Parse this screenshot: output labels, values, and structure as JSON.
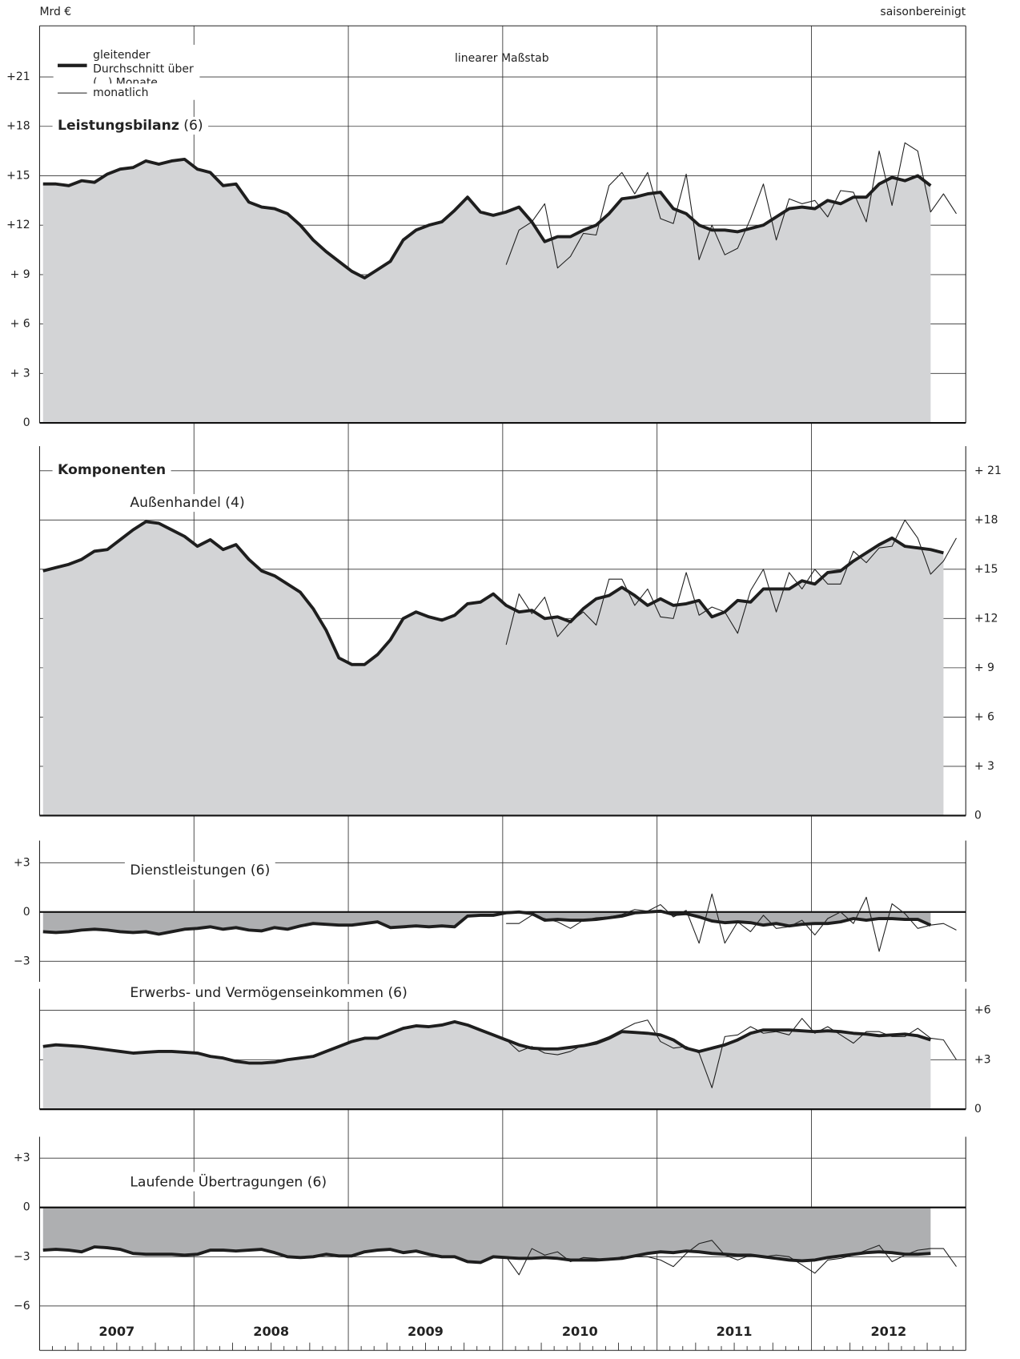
{
  "unit_label": "Mrd €",
  "adjustment_note": "saisonbereinigt",
  "scale_note": "linearer Maßstab",
  "section_title": "Komponenten",
  "years": [
    "2007",
    "2008",
    "2009",
    "2010",
    "2011",
    "2012"
  ],
  "chart_data": [
    {
      "type": "line",
      "title": "Leistungsbilanz",
      "title_note": "(6)",
      "ylim": [
        0,
        24.1
      ],
      "yticks": [
        0,
        {
          "value": 3,
          "label": "+ 3"
        },
        {
          "value": 6,
          "label": "+ 6"
        },
        {
          "value": 9,
          "label": "+ 9"
        },
        {
          "value": 12,
          "label": "+12"
        },
        {
          "value": 15,
          "label": "+15"
        },
        {
          "value": 18,
          "label": "+18"
        },
        {
          "value": 21,
          "label": "+21"
        }
      ],
      "area_color": "#d3d4d6",
      "grid": true,
      "series": [
        {
          "name": "gleitender Durchschnitt über (...) Monate",
          "color": "#1e1e1e",
          "values": [
            14.5,
            14.5,
            14.4,
            14.7,
            14.6,
            15.1,
            15.4,
            15.5,
            15.9,
            15.7,
            15.9,
            16.0,
            15.4,
            15.2,
            14.4,
            14.5,
            13.4,
            13.1,
            13.0,
            12.7,
            12.0,
            11.1,
            10.4,
            9.8,
            9.2,
            8.8,
            9.3,
            9.8,
            11.1,
            11.7,
            12.0,
            12.2,
            12.9,
            13.7,
            12.8,
            12.6,
            12.8,
            13.1,
            12.2,
            11.0,
            11.3,
            11.3,
            11.7,
            12.0,
            12.7,
            13.6,
            13.7,
            13.9,
            14.0,
            13.0,
            12.7,
            12.0,
            11.7,
            11.7,
            11.6,
            11.8,
            12.0,
            12.5,
            13.0,
            13.1,
            13.0,
            13.5,
            13.3,
            13.7,
            13.7,
            14.5,
            14.9,
            14.7,
            15.0,
            14.4,
            null,
            null
          ]
        },
        {
          "name": "monatlich",
          "color": "#1e1e1e",
          "values": [
            null,
            null,
            null,
            null,
            null,
            null,
            null,
            null,
            null,
            null,
            null,
            null,
            null,
            null,
            null,
            null,
            null,
            null,
            null,
            null,
            null,
            null,
            null,
            null,
            null,
            null,
            null,
            null,
            null,
            null,
            null,
            null,
            null,
            null,
            null,
            null,
            9.6,
            11.7,
            12.2,
            13.3,
            9.4,
            10.1,
            11.5,
            11.4,
            14.4,
            15.2,
            13.9,
            15.2,
            12.4,
            12.1,
            15.1,
            9.9,
            12.0,
            10.2,
            10.6,
            12.4,
            14.5,
            11.1,
            13.6,
            13.3,
            13.5,
            12.5,
            14.1,
            14.0,
            12.2,
            16.5,
            13.2,
            17.0,
            16.5,
            12.8,
            13.9,
            12.7
          ]
        }
      ]
    },
    {
      "type": "line",
      "title": "Außenhandel (4)",
      "ylim": [
        0,
        22.5
      ],
      "yticks": [
        0,
        {
          "value": 3,
          "label": "+ 3"
        },
        {
          "value": 6,
          "label": "+ 6"
        },
        {
          "value": 9,
          "label": "+ 9"
        },
        {
          "value": 12,
          "label": "+12"
        },
        {
          "value": 15,
          "label": "+15"
        },
        {
          "value": 18,
          "label": "+18"
        },
        {
          "value": 21,
          "label": "+ 21"
        }
      ],
      "area_color": "#d3d4d6",
      "grid": true,
      "series": [
        {
          "color": "#1e1e1e",
          "values": [
            14.9,
            15.1,
            15.3,
            15.6,
            16.1,
            16.2,
            16.8,
            17.4,
            17.9,
            17.8,
            17.4,
            17.0,
            16.4,
            16.8,
            16.2,
            16.5,
            15.6,
            14.9,
            14.6,
            14.1,
            13.6,
            12.6,
            11.3,
            9.6,
            9.2,
            9.2,
            9.8,
            10.7,
            12.0,
            12.4,
            12.1,
            11.9,
            12.2,
            12.9,
            13.0,
            13.5,
            12.8,
            12.4,
            12.5,
            12.0,
            12.1,
            11.8,
            12.6,
            13.2,
            13.4,
            13.9,
            13.4,
            12.8,
            13.2,
            12.8,
            12.9,
            13.1,
            12.1,
            12.4,
            13.1,
            13.0,
            13.8,
            13.8,
            13.8,
            14.3,
            14.1,
            14.8,
            14.9,
            15.5,
            16.0,
            16.5,
            16.9,
            16.4,
            16.3,
            16.2,
            16.0,
            null
          ]
        },
        {
          "color": "#1e1e1e",
          "values": [
            null,
            null,
            null,
            null,
            null,
            null,
            null,
            null,
            null,
            null,
            null,
            null,
            null,
            null,
            null,
            null,
            null,
            null,
            null,
            null,
            null,
            null,
            null,
            null,
            null,
            null,
            null,
            null,
            null,
            null,
            null,
            null,
            null,
            null,
            null,
            null,
            10.4,
            13.5,
            12.3,
            13.3,
            10.9,
            11.8,
            12.4,
            11.6,
            14.4,
            14.4,
            12.8,
            13.8,
            12.1,
            12.0,
            14.8,
            12.2,
            12.7,
            12.4,
            11.1,
            13.7,
            15.0,
            12.4,
            14.8,
            13.8,
            15.0,
            14.1,
            14.1,
            16.1,
            15.4,
            16.3,
            16.4,
            18.0,
            16.9,
            14.7,
            15.5,
            16.9
          ]
        }
      ]
    },
    {
      "type": "line",
      "title": "Dienstleistungen (6)",
      "ylim": [
        -4.25,
        4.35
      ],
      "yticks": [
        {
          "value": -3,
          "label": "−3"
        },
        0,
        {
          "value": 3,
          "label": "+3"
        }
      ],
      "area_color": "#aeafb1",
      "grid": true,
      "series": [
        {
          "color": "#1e1e1e",
          "values": [
            -1.2,
            -1.25,
            -1.2,
            -1.1,
            -1.05,
            -1.1,
            -1.2,
            -1.25,
            -1.2,
            -1.35,
            -1.2,
            -1.05,
            -1.0,
            -0.9,
            -1.05,
            -0.95,
            -1.1,
            -1.15,
            -0.95,
            -1.05,
            -0.85,
            -0.7,
            -0.75,
            -0.8,
            -0.8,
            -0.7,
            -0.6,
            -0.95,
            -0.9,
            -0.85,
            -0.9,
            -0.85,
            -0.9,
            -0.25,
            -0.2,
            -0.2,
            -0.05,
            0.0,
            -0.1,
            -0.5,
            -0.45,
            -0.5,
            -0.5,
            -0.45,
            -0.35,
            -0.25,
            -0.05,
            0.0,
            0.05,
            -0.15,
            -0.1,
            -0.3,
            -0.55,
            -0.65,
            -0.6,
            -0.65,
            -0.8,
            -0.7,
            -0.85,
            -0.75,
            -0.7,
            -0.7,
            -0.6,
            -0.4,
            -0.5,
            -0.4,
            -0.4,
            -0.45,
            -0.45,
            -0.8,
            null,
            null
          ]
        },
        {
          "color": "#1e1e1e",
          "values": [
            null,
            null,
            null,
            null,
            null,
            null,
            null,
            null,
            null,
            null,
            null,
            null,
            null,
            null,
            null,
            null,
            null,
            null,
            null,
            null,
            null,
            null,
            null,
            null,
            null,
            null,
            null,
            null,
            null,
            null,
            null,
            null,
            null,
            null,
            null,
            null,
            -0.7,
            -0.7,
            -0.2,
            -0.4,
            -0.6,
            -1.0,
            -0.5,
            -0.35,
            -0.3,
            -0.15,
            0.15,
            0.05,
            0.45,
            -0.3,
            0.1,
            -1.9,
            1.1,
            -1.9,
            -0.6,
            -1.2,
            -0.2,
            -1.0,
            -0.9,
            -0.5,
            -1.4,
            -0.4,
            0.0,
            -0.7,
            0.9,
            -2.4,
            0.5,
            -0.1,
            -1.0,
            -0.8,
            -0.7,
            -1.1
          ]
        }
      ]
    },
    {
      "type": "line",
      "title": "Erwerbs- und Vermögenseinkommen (6)",
      "ylim": [
        0,
        7.3
      ],
      "yticks": [
        0,
        {
          "value": 3,
          "label": "+3"
        },
        {
          "value": 6,
          "label": "+6"
        }
      ],
      "area_color": "#d3d4d6",
      "grid": true,
      "series": [
        {
          "color": "#1e1e1e",
          "values": [
            3.8,
            3.9,
            3.85,
            3.8,
            3.7,
            3.6,
            3.5,
            3.4,
            3.45,
            3.5,
            3.5,
            3.45,
            3.4,
            3.2,
            3.1,
            2.9,
            2.8,
            2.8,
            2.85,
            3.0,
            3.1,
            3.2,
            3.5,
            3.8,
            4.1,
            4.3,
            4.3,
            4.6,
            4.9,
            5.05,
            5.0,
            5.1,
            5.3,
            5.1,
            4.8,
            4.5,
            4.2,
            3.9,
            3.7,
            3.65,
            3.65,
            3.75,
            3.85,
            4.0,
            4.3,
            4.7,
            4.65,
            4.6,
            4.5,
            4.2,
            3.7,
            3.5,
            3.7,
            3.9,
            4.2,
            4.6,
            4.8,
            4.8,
            4.8,
            4.75,
            4.7,
            4.75,
            4.7,
            4.6,
            4.55,
            4.45,
            4.5,
            4.55,
            4.45,
            4.2,
            null,
            null
          ]
        },
        {
          "color": "#1e1e1e",
          "values": [
            null,
            null,
            null,
            null,
            null,
            null,
            null,
            null,
            null,
            null,
            null,
            null,
            null,
            null,
            null,
            null,
            null,
            null,
            null,
            null,
            null,
            null,
            null,
            null,
            null,
            null,
            null,
            null,
            null,
            null,
            null,
            null,
            null,
            null,
            null,
            null,
            4.2,
            3.5,
            3.8,
            3.4,
            3.3,
            3.5,
            3.9,
            4.1,
            4.4,
            4.8,
            5.2,
            5.4,
            4.1,
            3.7,
            3.8,
            3.4,
            1.3,
            4.4,
            4.5,
            5.0,
            4.6,
            4.7,
            4.5,
            5.5,
            4.6,
            5.0,
            4.5,
            4.0,
            4.7,
            4.7,
            4.4,
            4.4,
            4.9,
            4.3,
            4.2,
            3.0
          ]
        }
      ]
    },
    {
      "type": "line",
      "title": "Laufende Übertragungen (6)",
      "ylim": [
        -8.7,
        4.3
      ],
      "yticks": [
        {
          "value": -6,
          "label": "−6"
        },
        {
          "value": -3,
          "label": "−3"
        },
        0,
        {
          "value": 3,
          "label": "+3"
        }
      ],
      "area_color": "#aeafb1",
      "grid": true,
      "series": [
        {
          "color": "#1e1e1e",
          "values": [
            -2.6,
            -2.55,
            -2.6,
            -2.7,
            -2.4,
            -2.45,
            -2.55,
            -2.8,
            -2.85,
            -2.85,
            -2.85,
            -2.9,
            -2.85,
            -2.6,
            -2.6,
            -2.65,
            -2.6,
            -2.55,
            -2.75,
            -3.0,
            -3.05,
            -3.0,
            -2.85,
            -2.95,
            -2.95,
            -2.7,
            -2.6,
            -2.55,
            -2.75,
            -2.65,
            -2.85,
            -3.0,
            -3.0,
            -3.3,
            -3.35,
            -3.0,
            -3.05,
            -3.1,
            -3.1,
            -3.05,
            -3.1,
            -3.2,
            -3.2,
            -3.2,
            -3.15,
            -3.1,
            -2.95,
            -2.8,
            -2.7,
            -2.75,
            -2.65,
            -2.7,
            -2.8,
            -2.85,
            -2.9,
            -2.9,
            -3.0,
            -3.1,
            -3.2,
            -3.25,
            -3.2,
            -3.05,
            -2.95,
            -2.85,
            -2.75,
            -2.7,
            -2.75,
            -2.85,
            -2.85,
            -2.8,
            null,
            null
          ]
        },
        {
          "color": "#1e1e1e",
          "values": [
            null,
            null,
            null,
            null,
            null,
            null,
            null,
            null,
            null,
            null,
            null,
            null,
            null,
            null,
            null,
            null,
            null,
            null,
            null,
            null,
            null,
            null,
            null,
            null,
            null,
            null,
            null,
            null,
            null,
            null,
            null,
            null,
            null,
            null,
            null,
            null,
            -3.0,
            -4.1,
            -2.5,
            -2.9,
            -2.7,
            -3.3,
            -3.05,
            -3.1,
            -3.2,
            -3.0,
            -3.0,
            -3.0,
            -3.2,
            -3.6,
            -2.8,
            -2.2,
            -2.0,
            -2.9,
            -3.2,
            -2.9,
            -3.0,
            -2.9,
            -3.0,
            -3.5,
            -4.0,
            -3.2,
            -3.1,
            -2.9,
            -2.6,
            -2.3,
            -3.3,
            -2.9,
            -2.6,
            -2.5,
            -2.5,
            -3.6
          ]
        }
      ]
    }
  ]
}
